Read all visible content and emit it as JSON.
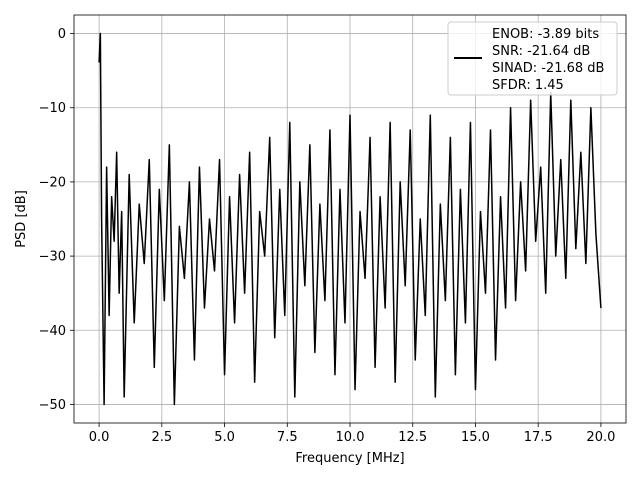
{
  "chart_data": {
    "type": "line",
    "xlabel": "Frequency [MHz]",
    "ylabel": "PSD [dB]",
    "xlim": [
      -1.0,
      21.0
    ],
    "ylim": [
      -52.5,
      2.5
    ],
    "xticks": [
      0.0,
      2.5,
      5.0,
      7.5,
      10.0,
      12.5,
      15.0,
      17.5,
      20.0
    ],
    "xtick_labels": [
      "0.0",
      "2.5",
      "5.0",
      "7.5",
      "10.0",
      "12.5",
      "15.0",
      "17.5",
      "20.0"
    ],
    "yticks": [
      0,
      -10,
      -20,
      -30,
      -40,
      -50
    ],
    "ytick_labels": [
      "0",
      "−10",
      "−20",
      "−30",
      "−40",
      "−50"
    ],
    "grid": true,
    "legend_position": "top-right",
    "legend_lines": [
      "ENOB: -3.89 bits",
      "SNR: -21.64 dB",
      "SINAD: -21.68 dB",
      "SFDR: 1.45"
    ],
    "series": [
      {
        "color": "#000000",
        "x": [
          0.0,
          0.05,
          0.1,
          0.2,
          0.3,
          0.4,
          0.5,
          0.6,
          0.7,
          0.8,
          0.9,
          1.0,
          1.2,
          1.4,
          1.6,
          1.8,
          2.0,
          2.2,
          2.4,
          2.6,
          2.8,
          3.0,
          3.2,
          3.4,
          3.6,
          3.8,
          4.0,
          4.2,
          4.4,
          4.6,
          4.8,
          5.0,
          5.2,
          5.4,
          5.6,
          5.8,
          6.0,
          6.2,
          6.4,
          6.6,
          6.8,
          7.0,
          7.2,
          7.4,
          7.6,
          7.8,
          8.0,
          8.2,
          8.4,
          8.6,
          8.8,
          9.0,
          9.2,
          9.4,
          9.6,
          9.8,
          10.0,
          10.2,
          10.4,
          10.6,
          10.8,
          11.0,
          11.2,
          11.4,
          11.6,
          11.8,
          12.0,
          12.2,
          12.4,
          12.6,
          12.8,
          13.0,
          13.2,
          13.4,
          13.6,
          13.8,
          14.0,
          14.2,
          14.4,
          14.6,
          14.8,
          15.0,
          15.2,
          15.4,
          15.6,
          15.8,
          16.0,
          16.2,
          16.4,
          16.6,
          16.8,
          17.0,
          17.2,
          17.4,
          17.6,
          17.8,
          18.0,
          18.2,
          18.4,
          18.6,
          18.8,
          19.0,
          19.2,
          19.4,
          19.6,
          19.8,
          20.0
        ],
        "y": [
          -3.9,
          0.0,
          -25,
          -50,
          -18,
          -38,
          -22,
          -28,
          -16,
          -35,
          -24,
          -49,
          -19,
          -39,
          -23,
          -31,
          -17,
          -45,
          -21,
          -36,
          -15,
          -50,
          -26,
          -33,
          -20,
          -44,
          -18,
          -37,
          -25,
          -32,
          -17,
          -46,
          -22,
          -39,
          -19,
          -35,
          -16,
          -47,
          -24,
          -30,
          -14,
          -41,
          -21,
          -38,
          -12,
          -49,
          -20,
          -34,
          -15,
          -43,
          -23,
          -36,
          -13,
          -46,
          -21,
          -39,
          -11,
          -48,
          -24,
          -33,
          -14,
          -45,
          -22,
          -37,
          -12,
          -47,
          -20,
          -34,
          -13,
          -44,
          -25,
          -38,
          -11,
          -49,
          -23,
          -36,
          -14,
          -46,
          -21,
          -39,
          -12,
          -48,
          -24,
          -35,
          -13,
          -44,
          -22,
          -37,
          -10,
          -36,
          -20,
          -32,
          -9,
          -28,
          -18,
          -35,
          -8,
          -30,
          -17,
          -33,
          -9,
          -29,
          -16,
          -31,
          -10,
          -27,
          -37
        ]
      }
    ]
  }
}
